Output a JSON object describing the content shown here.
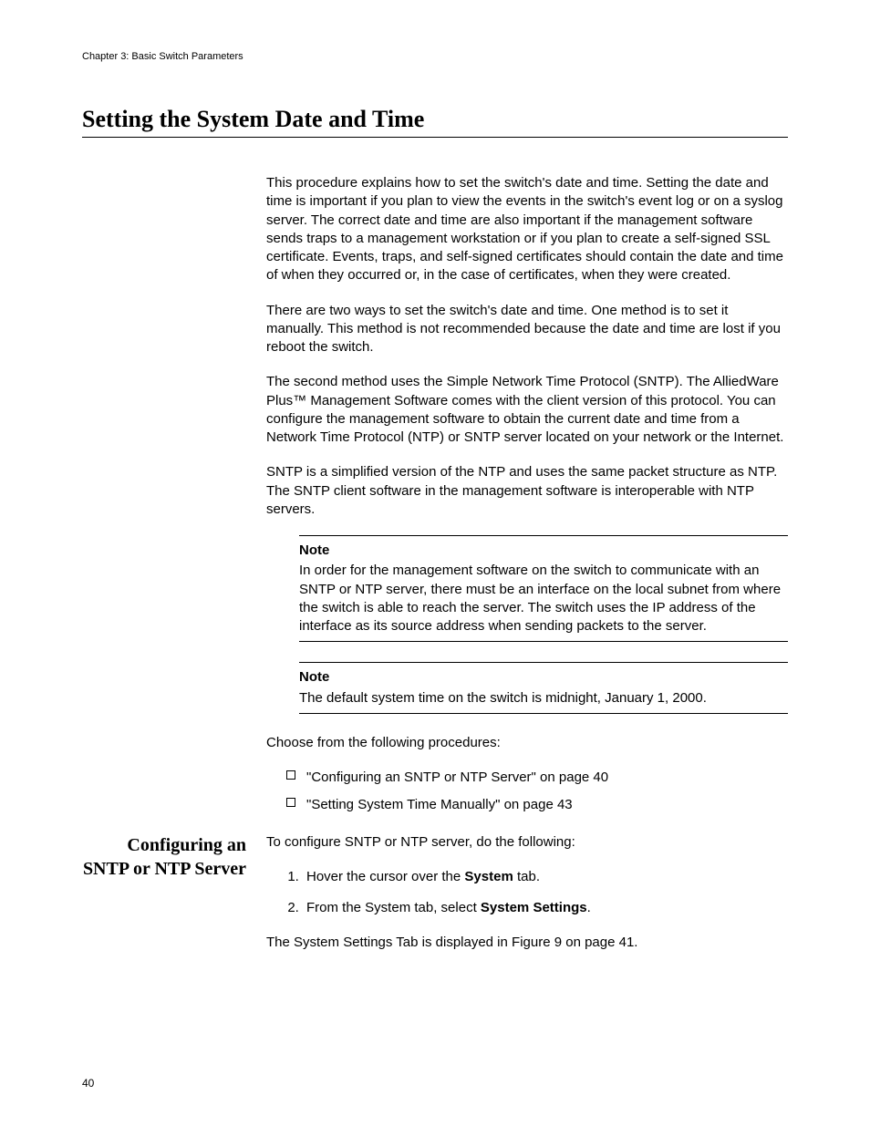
{
  "runningHead": "Chapter 3: Basic Switch Parameters",
  "sectionTitle": "Setting the System Date and Time",
  "para1": "This procedure explains how to set the switch's date and time. Setting the date and time is important if you plan to view the events in the switch's event log or on a syslog server. The correct date and time are also important if the management software sends traps to a management workstation or if you plan to create a self-signed SSL certificate. Events, traps, and self-signed certificates should contain the date and time of when they occurred or, in the case of certificates, when they were created.",
  "para2": "There are two ways to set the switch's date and time. One method is to set it manually. This method is not recommended because the date and time are lost if you reboot the switch.",
  "para3": "The second method uses the Simple Network Time Protocol (SNTP). The AlliedWare Plus™ Management Software comes with the client version of this protocol. You can configure the management software to obtain the current date and time from a Network Time Protocol (NTP) or SNTP server located on your network or the Internet.",
  "para4": "SNTP is a simplified version of the NTP and uses the same packet structure as NTP. The SNTP client software in the management software is interoperable with NTP servers.",
  "note1": {
    "label": "Note",
    "body": "In order for the management software on the switch to communicate with an SNTP or NTP server, there must be an interface on the local subnet from where the switch is able to reach the server. The switch uses the IP address of the interface as its source address when sending packets to the server."
  },
  "note2": {
    "label": "Note",
    "body": "The default system time on the switch is midnight, January 1, 2000."
  },
  "chooseLead": "Choose from the following procedures:",
  "choice1": "\"Configuring an SNTP or NTP Server\" on page 40",
  "choice2": "\"Setting System Time Manually\" on page 43",
  "sidehead": "Configuring an SNTP or NTP Server",
  "configLead": "To configure SNTP or NTP server, do the following:",
  "step1_a": "Hover the cursor over the ",
  "step1_bold": "System",
  "step1_b": " tab.",
  "step2_a": "From the System tab, select ",
  "step2_bold": "System Settings",
  "step2_b": ".",
  "stepResult": "The System Settings Tab is displayed in Figure 9 on page 41.",
  "pageNumber": "40"
}
